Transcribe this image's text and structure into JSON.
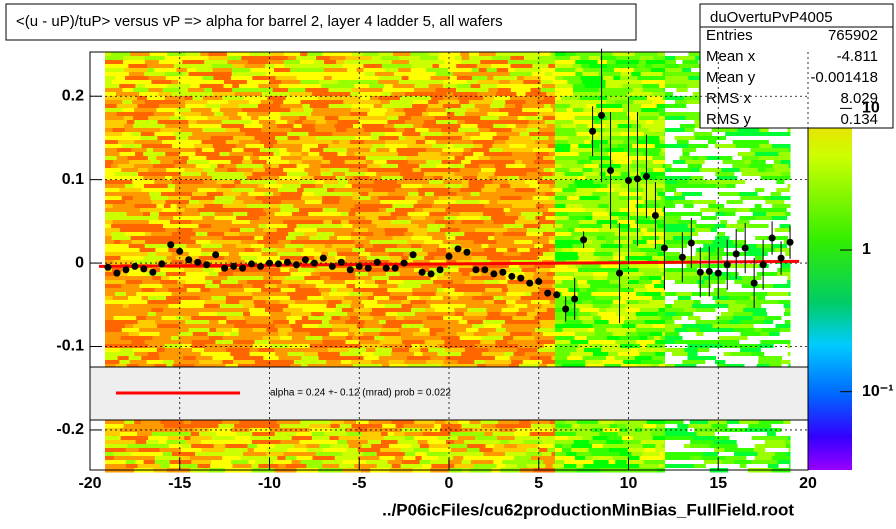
{
  "chart_data": {
    "type": "scatter",
    "title": "<(u - uP)/tuP> versus   vP => alpha for barrel 2, layer 4 ladder 5, all wafers",
    "footer": "../P06icFiles/cu62productionMinBias_FullField.root",
    "xlim": [
      -20,
      20
    ],
    "xticks": [
      -20,
      -15,
      -10,
      -5,
      0,
      5,
      10,
      15,
      20
    ],
    "ylim": [
      -0.248,
      0.253
    ],
    "yticks": [
      -0.2,
      -0.1,
      0,
      0.1,
      0.2
    ],
    "grid": true,
    "color": "#000000",
    "x": [
      -19,
      -18.5,
      -18,
      -17.5,
      -17,
      -16.5,
      -16,
      -15.5,
      -15,
      -14.5,
      -14,
      -13.5,
      -13,
      -12.5,
      -12,
      -11.5,
      -11,
      -10.5,
      -10,
      -9.5,
      -9,
      -8.5,
      -8,
      -7.5,
      -7,
      -6.5,
      -6,
      -5.5,
      -5,
      -4.5,
      -4,
      -3.5,
      -3,
      -2.5,
      -2,
      -1.5,
      -1,
      -0.5,
      0,
      0.5,
      1,
      1.5,
      2,
      2.5,
      3,
      3.5,
      4,
      4.5,
      5,
      5.5,
      6,
      6.5,
      7,
      7.5,
      8,
      8.5,
      9,
      9.5,
      10,
      10.5,
      11,
      11.5,
      12,
      13,
      13.5,
      14,
      14.5,
      15,
      15.5,
      16,
      16.5,
      17,
      17.5,
      18,
      18.5,
      19
    ],
    "values": [
      -0.005,
      -0.012,
      -0.008,
      -0.004,
      -0.007,
      -0.011,
      -0.001,
      0.022,
      0.014,
      0.004,
      0.001,
      -0.002,
      0.01,
      -0.006,
      -0.004,
      -0.006,
      -0.001,
      -0.004,
      0,
      -0.001,
      0.001,
      -0.002,
      0.004,
      0,
      0.006,
      -0.004,
      0.001,
      -0.008,
      -0.004,
      -0.006,
      0.001,
      -0.006,
      -0.006,
      0,
      0.01,
      -0.011,
      -0.013,
      -0.008,
      0.008,
      0.017,
      0.013,
      -0.008,
      -0.008,
      -0.013,
      -0.011,
      -0.016,
      -0.018,
      -0.024,
      -0.022,
      -0.036,
      -0.038,
      -0.055,
      -0.043,
      0.028,
      0.158,
      0.177,
      0.111,
      -0.012,
      0.099,
      0.101,
      0.104,
      0.057,
      0.018,
      0.007,
      0.024,
      -0.011,
      -0.01,
      -0.012,
      -0.002,
      0.011,
      0.018,
      -0.024,
      -0.002,
      0.03,
      0.006,
      0.025
    ],
    "errors": [
      null,
      null,
      null,
      null,
      null,
      null,
      null,
      null,
      null,
      null,
      null,
      null,
      null,
      null,
      null,
      null,
      null,
      null,
      null,
      null,
      null,
      null,
      null,
      null,
      null,
      null,
      null,
      null,
      null,
      null,
      null,
      null,
      null,
      null,
      null,
      null,
      null,
      null,
      null,
      null,
      null,
      null,
      null,
      null,
      null,
      null,
      null,
      null,
      null,
      null,
      null,
      0.015,
      0.025,
      0.01,
      0.03,
      0.08,
      0.07,
      0.06,
      0.1,
      0.08,
      0.05,
      0.04,
      0.05,
      0.03,
      0.03,
      0.03,
      0.03,
      0.03,
      0.03,
      0.03,
      0.03,
      0.03,
      0.03,
      0.02,
      0.02,
      0.02
    ],
    "fit": {
      "label": "alpha =    0.24 +-  0.12 (mrad) prob = 0.022",
      "color": "#ff0000",
      "x": [
        -19.5,
        19.5
      ],
      "values": [
        -0.004,
        0.002
      ]
    },
    "stats": {
      "title": "duOvertuPvP4005",
      "rows": [
        {
          "label": "Entries",
          "value": 765902
        },
        {
          "label": "Mean x",
          "value": -4.811
        },
        {
          "label": "Mean y",
          "value": -0.001418
        },
        {
          "label": "RMS x",
          "value": 8.029
        },
        {
          "label": "RMS y",
          "value": 0.134
        }
      ]
    },
    "zlog": true,
    "zlim": [
      0.028,
      25
    ],
    "zticks": [
      {
        "value": 10,
        "label": "10"
      },
      {
        "value": 1,
        "label": "1"
      },
      {
        "value": 0.1,
        "label": "10⁻¹"
      }
    ]
  }
}
